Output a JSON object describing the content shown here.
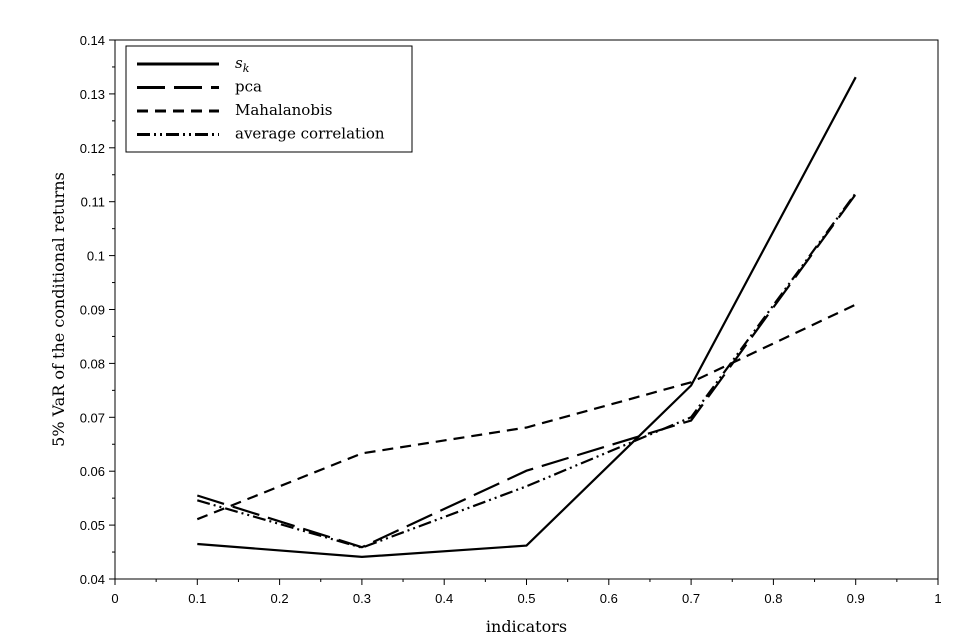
{
  "chart_data": {
    "type": "line",
    "xlabel": "indicators",
    "ylabel": "5% VaR of the conditional returns",
    "xlim": [
      0,
      1
    ],
    "ylim": [
      0.04,
      0.14
    ],
    "x_ticks": [
      "0",
      "0.1",
      "0.2",
      "0.3",
      "0.4",
      "0.5",
      "0.6",
      "0.7",
      "0.8",
      "0.9",
      "1"
    ],
    "y_ticks": [
      "0.04",
      "0.05",
      "0.06",
      "0.07",
      "0.08",
      "0.09",
      "0.1",
      "0.11",
      "0.12",
      "0.13",
      "0.14"
    ],
    "grid": false,
    "legend_position": "top-left",
    "series": [
      {
        "name": "s_k",
        "label_main": "s",
        "label_sub": "k",
        "dash": "solid",
        "x": [
          0.1,
          0.3,
          0.5,
          0.7,
          0.9
        ],
        "y": [
          0.0465,
          0.0441,
          0.0462,
          0.0759,
          0.1331
        ]
      },
      {
        "name": "pca",
        "dash": "longdash",
        "x": [
          0.1,
          0.3,
          0.5,
          0.7,
          0.9
        ],
        "y": [
          0.0555,
          0.0459,
          0.0601,
          0.0694,
          0.1114
        ]
      },
      {
        "name": "Mahalanobis",
        "dash": "dash",
        "x": [
          0.1,
          0.3,
          0.5,
          0.7,
          0.9
        ],
        "y": [
          0.0511,
          0.0633,
          0.0681,
          0.0765,
          0.0909
        ]
      },
      {
        "name": "average correlation",
        "dash": "dashdotdot",
        "x": [
          0.1,
          0.3,
          0.5,
          0.7,
          0.9
        ],
        "y": [
          0.0546,
          0.0458,
          0.0572,
          0.07,
          0.1116
        ]
      }
    ]
  }
}
